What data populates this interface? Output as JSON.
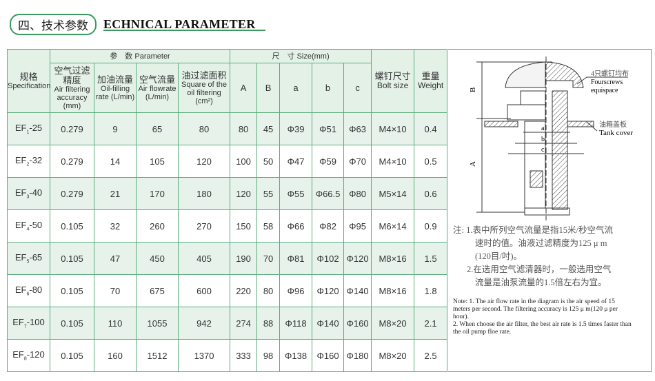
{
  "title": {
    "cn": "四、技术参数",
    "en": "ECHNICAL PARAMETER"
  },
  "headers": {
    "spec": {
      "cn": "规格",
      "en": "Specification"
    },
    "parameter": "参　数 Parameter",
    "size": "尺　寸 Size(mm)",
    "air_acc": {
      "cn": "空气过滤精度",
      "en": "Air filtering accuracy (mm)"
    },
    "oil_rate": {
      "cn": "加油流量",
      "en": "Oil-filling rate (L/min)"
    },
    "air_flow": {
      "cn": "空气流量",
      "en": "Air flowrate (L/min)"
    },
    "square": {
      "cn": "油过滤面积",
      "en": "Square of the oil filtering (cm²)"
    },
    "A": "A",
    "B": "B",
    "a": "a",
    "b": "b",
    "c": "c",
    "bolt": {
      "cn": "螺钉尺寸",
      "en": "Bolt size"
    },
    "weight": {
      "cn": "重量",
      "en": "Weight"
    }
  },
  "rows": [
    {
      "spec": "EF",
      "sub": "1",
      "num": "-25",
      "acc": "0.279",
      "oil": "9",
      "air": "65",
      "sq": "80",
      "A": "80",
      "B": "45",
      "a": "Φ39",
      "b": "Φ51",
      "c": "Φ63",
      "bolt": "M4×10",
      "w": "0.4"
    },
    {
      "spec": "EF",
      "sub": "2",
      "num": "-32",
      "acc": "0.279",
      "oil": "14",
      "air": "105",
      "sq": "120",
      "A": "100",
      "B": "50",
      "a": "Φ47",
      "b": "Φ59",
      "c": "Φ70",
      "bolt": "M4×10",
      "w": "0.5"
    },
    {
      "spec": "EF",
      "sub": "3",
      "num": "-40",
      "acc": "0.279",
      "oil": "21",
      "air": "170",
      "sq": "180",
      "A": "120",
      "B": "55",
      "a": "Φ55",
      "b": "Φ66.5",
      "c": "Φ80",
      "bolt": "M5×14",
      "w": "0.6"
    },
    {
      "spec": "EF",
      "sub": "4",
      "num": "-50",
      "acc": "0.105",
      "oil": "32",
      "air": "260",
      "sq": "270",
      "A": "150",
      "B": "58",
      "a": "Φ66",
      "b": "Φ82",
      "c": "Φ95",
      "bolt": "M6×14",
      "w": "0.9"
    },
    {
      "spec": "EF",
      "sub": "5",
      "num": "-65",
      "acc": "0.105",
      "oil": "47",
      "air": "450",
      "sq": "405",
      "A": "190",
      "B": "70",
      "a": "Φ81",
      "b": "Φ102",
      "c": "Φ120",
      "bolt": "M8×16",
      "w": "1.5"
    },
    {
      "spec": "EF",
      "sub": "6",
      "num": "-80",
      "acc": "0.105",
      "oil": "70",
      "air": "675",
      "sq": "600",
      "A": "220",
      "B": "80",
      "a": "Φ96",
      "b": "Φ120",
      "c": "Φ140",
      "bolt": "M8×16",
      "w": "1.8"
    },
    {
      "spec": "EF",
      "sub": "7",
      "num": "-100",
      "acc": "0.105",
      "oil": "110",
      "air": "1055",
      "sq": "942",
      "A": "274",
      "B": "88",
      "a": "Φ118",
      "b": "Φ140",
      "c": "Φ160",
      "bolt": "M8×20",
      "w": "2.1"
    },
    {
      "spec": "EF",
      "sub": "8",
      "num": "-120",
      "acc": "0.105",
      "oil": "160",
      "air": "1512",
      "sq": "1370",
      "A": "333",
      "B": "98",
      "a": "Φ138",
      "b": "Φ160",
      "c": "Φ180",
      "bolt": "M8×20",
      "w": "2.5"
    }
  ],
  "diagram": {
    "screws_cn": "4只螺钉均布",
    "screws_en1": "Fourscrews",
    "screws_en2": "equispace",
    "cover_cn": "油箱盖板",
    "cover_en": "Tank cover",
    "A": "A",
    "B": "B",
    "a": "a",
    "b": "b",
    "c": "c"
  },
  "notes_cn": [
    "注: 1.表中所列空气流量是指15米/秒空气流",
    "速时的值。油液过滤精度为125 μ m",
    "(120目/吋)。",
    "2.在选用空气滤清器时，一般选用空气",
    "流量是油泵流量的1.5倍左右为宜。"
  ],
  "notes_en": [
    "Note: 1. The air flow rate in the diagram is the air speed of 15 meters per second. The filtering accuracy is 125 μ m(120 μ per hour).",
    "2. When choose the air filter, the best air rate is 1.5 times faster than the oil pump floe rate."
  ],
  "colors": {
    "border": "#5aac7c",
    "header_bg": "#e3f1e7",
    "accent": "#3a9a5c"
  }
}
